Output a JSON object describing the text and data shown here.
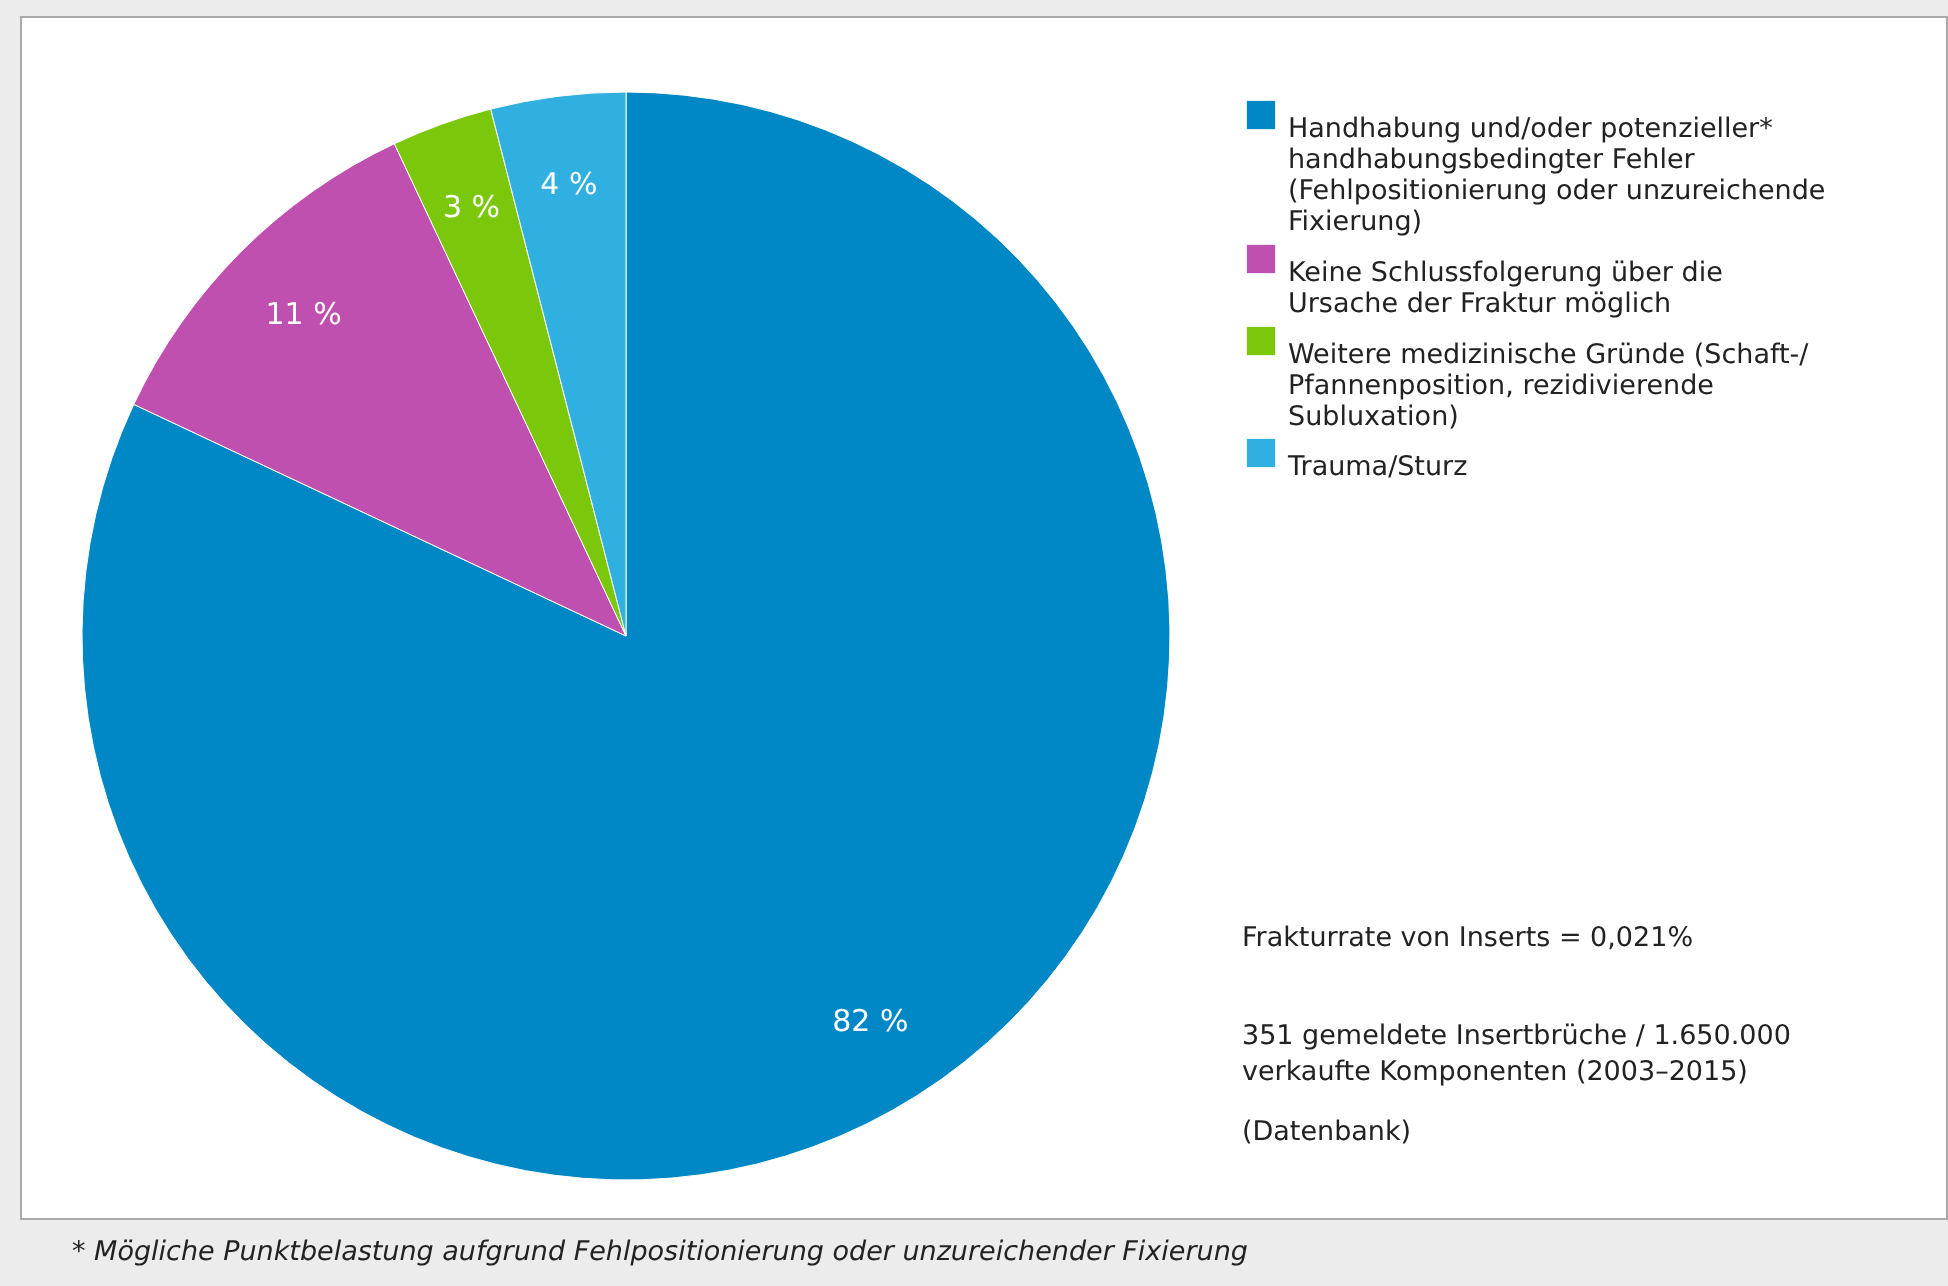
{
  "chart_data": {
    "type": "pie",
    "categories": [
      "Handhabung und/oder potenzieller* handhabungsbedingter Fehler (Fehlpositionierung oder unzureichende Fixierung)",
      "Keine Schlussfolgerung über die Ursache der Fraktur möglich",
      "Weitere medizinische Gründe (Schaft-/ Pfannenposition, rezidivierende Subluxation)",
      "Trauma/Sturz"
    ],
    "values": [
      82,
      11,
      3,
      4
    ],
    "colors": [
      "#0088c6",
      "#c050b0",
      "#7ac70c",
      "#30b0e0"
    ],
    "value_labels": [
      "82 %",
      "11 %",
      "3 %",
      "4 %"
    ],
    "legend": "top right",
    "annotations": [
      "Frakturrate von Inserts = 0,021%",
      "351 gemeldete Insertbrüche / 1.650.000 verkaufte Komponenten  (2003–2015)",
      "(Datenbank)",
      "* Mögliche Punktbelastung aufgrund Fehlpositionierung oder unzureichender Fixierung"
    ]
  }
}
